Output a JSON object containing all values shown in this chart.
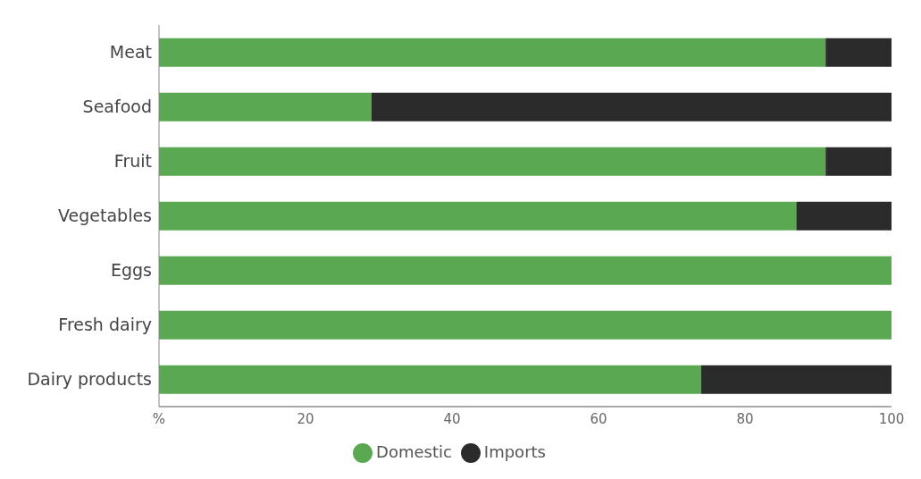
{
  "chart_data": {
    "type": "bar",
    "orientation": "horizontal",
    "stacked": true,
    "categories": [
      "Meat",
      "Seafood",
      "Fruit",
      "Vegetables",
      "Eggs",
      "Fresh dairy",
      "Dairy products"
    ],
    "series": [
      {
        "name": "Domestic",
        "color": "#5aa852",
        "values": [
          91,
          29,
          91,
          87,
          100,
          100,
          74
        ]
      },
      {
        "name": "Imports",
        "color": "#2b2b2b",
        "values": [
          9,
          71,
          9,
          13,
          0,
          0,
          26
        ]
      }
    ],
    "xlim": [
      0,
      100
    ],
    "xticks": [
      {
        "value": 0,
        "label": "%"
      },
      20,
      40,
      60,
      80,
      100
    ],
    "legend": "bottom"
  }
}
